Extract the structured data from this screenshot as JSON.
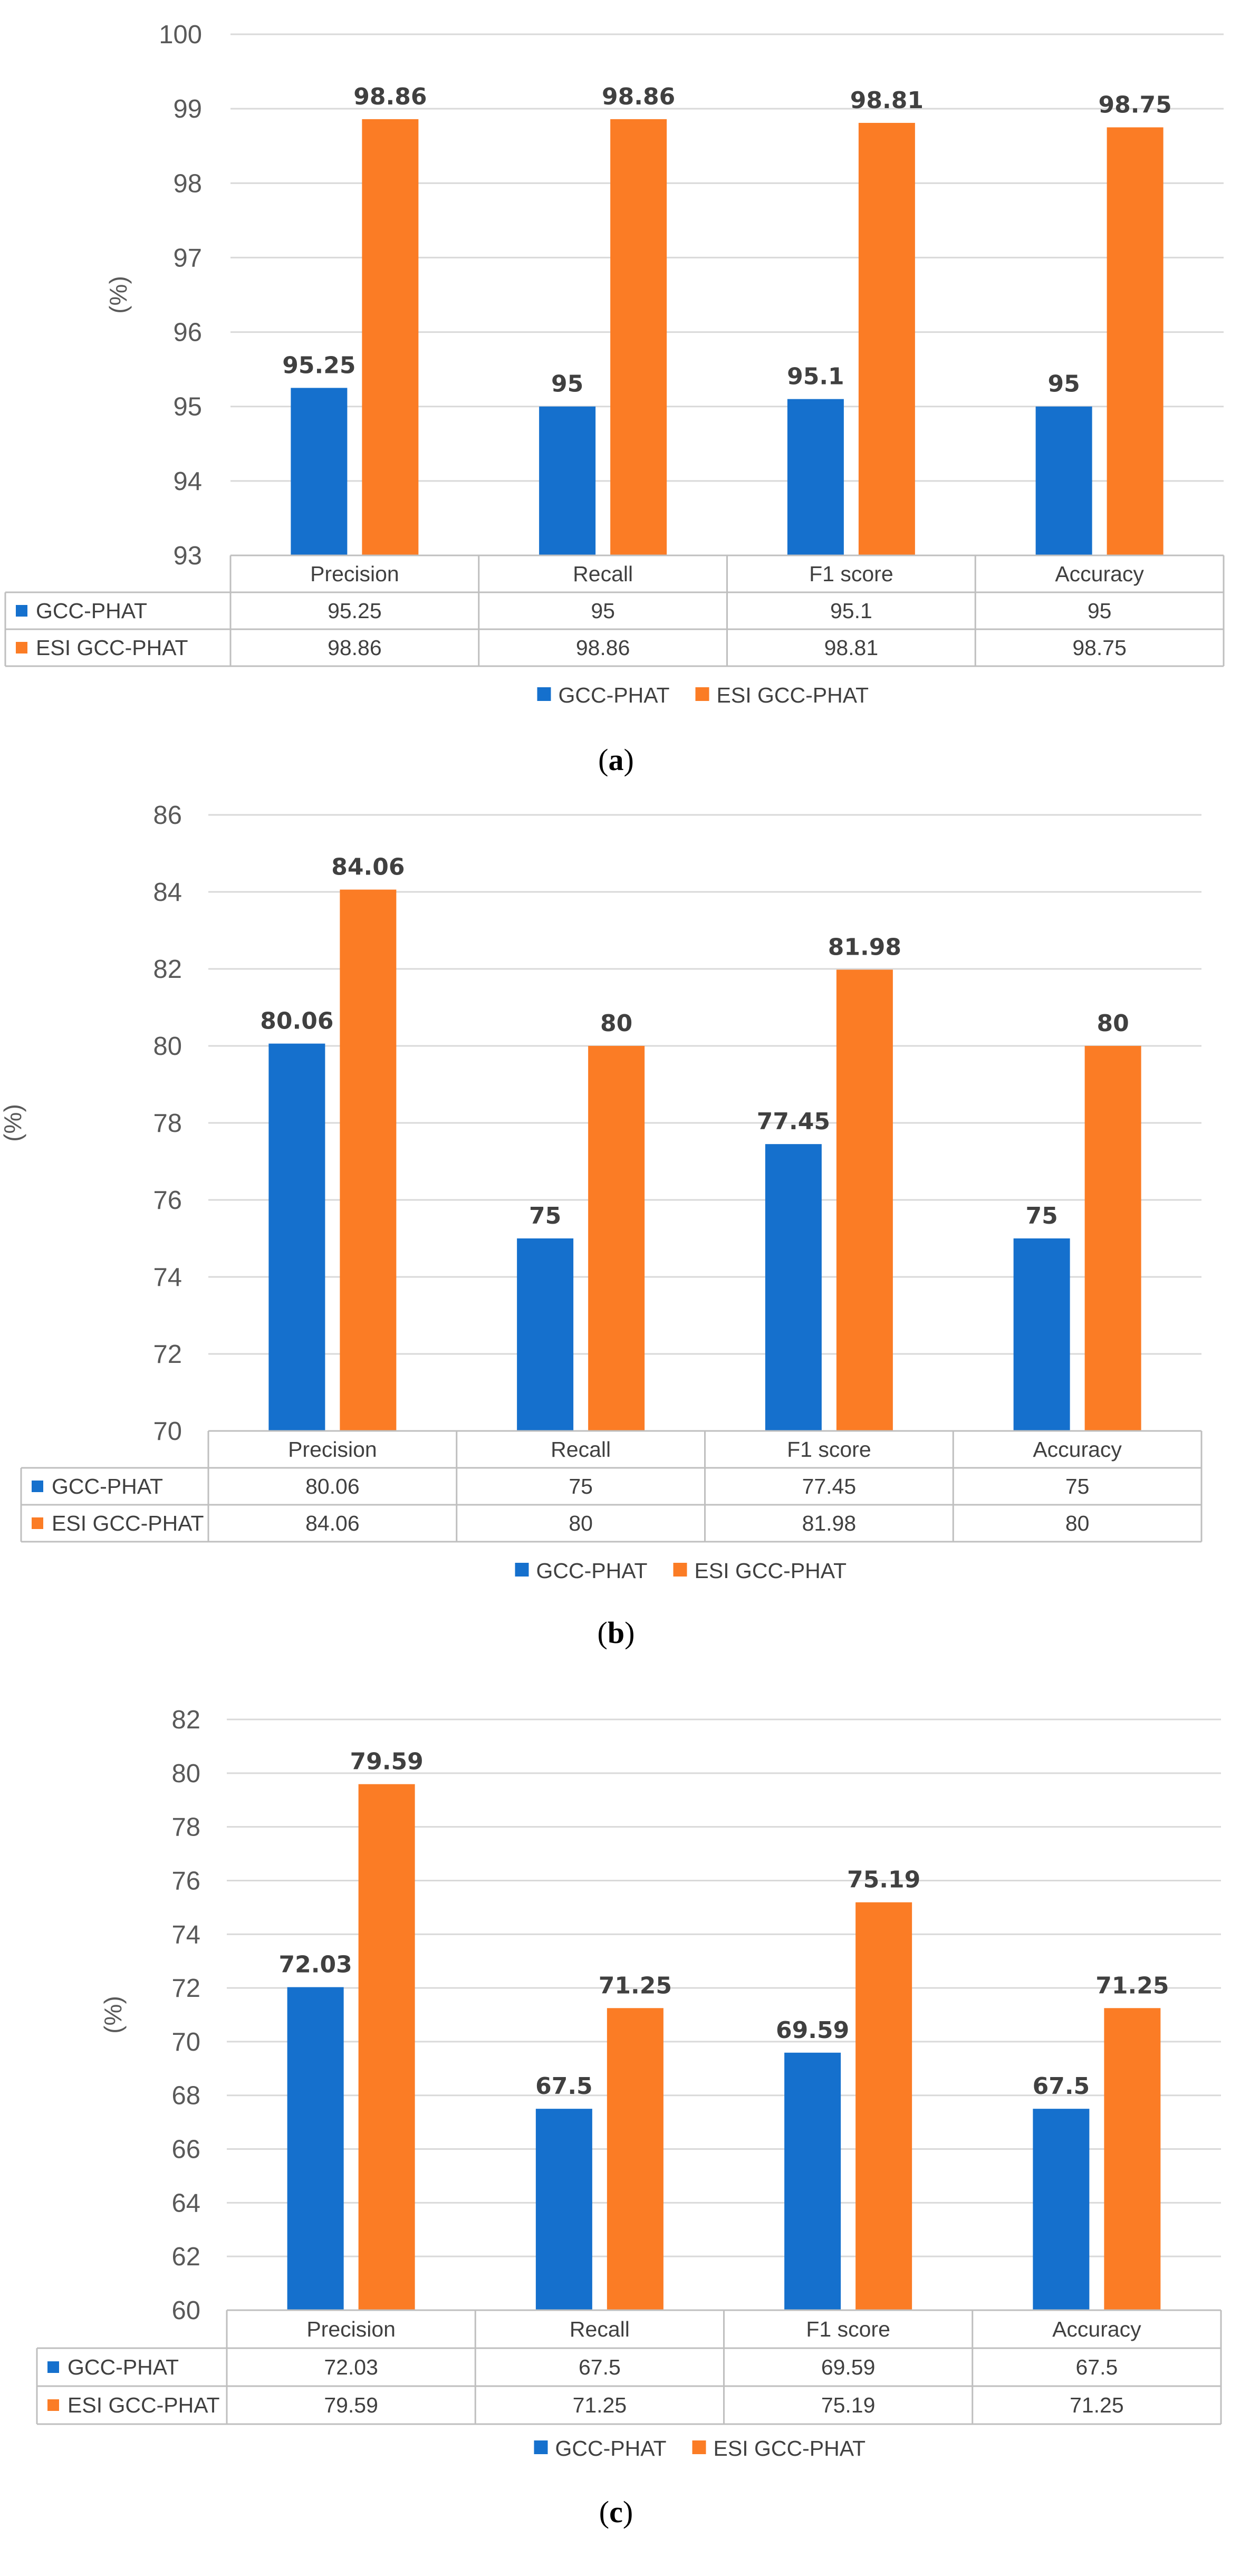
{
  "colors": {
    "gcc_phat": "#1570cd",
    "esi_gcc_phat": "#fb7c25",
    "grid": "#d9d9d9",
    "text": "#404040"
  },
  "chart_data": [
    {
      "type": "bar",
      "panel": "a",
      "caption_open": "(",
      "caption_letter": "a",
      "caption_close": ")",
      "ylabel": "(%)",
      "ylim": [
        93,
        100
      ],
      "ytick_step": 1,
      "yticks": [
        "93",
        "94",
        "95",
        "96",
        "97",
        "98",
        "99",
        "100"
      ],
      "grid": true,
      "legend_position": "bottom-center",
      "categories": [
        "Precision",
        "Recall",
        "F1 score",
        "Accuracy"
      ],
      "series": [
        {
          "name": "GCC-PHAT",
          "color": "#1570cd",
          "values": [
            95.25,
            95,
            95.1,
            95
          ],
          "labels": [
            "95.25",
            "95",
            "95.1",
            "95"
          ]
        },
        {
          "name": "ESI GCC-PHAT",
          "color": "#fb7c25",
          "values": [
            98.86,
            98.86,
            98.81,
            98.75
          ],
          "labels": [
            "98.86",
            "98.86",
            "98.81",
            "98.75"
          ]
        }
      ]
    },
    {
      "type": "bar",
      "panel": "b",
      "caption_open": "(",
      "caption_letter": "b",
      "caption_close": ")",
      "ylabel": "(%)",
      "ylim": [
        70,
        86
      ],
      "ytick_step": 2,
      "yticks": [
        "70",
        "72",
        "74",
        "76",
        "78",
        "80",
        "82",
        "84",
        "86"
      ],
      "grid": true,
      "legend_position": "bottom-center",
      "categories": [
        "Precision",
        "Recall",
        "F1 score",
        "Accuracy"
      ],
      "series": [
        {
          "name": "GCC-PHAT",
          "color": "#1570cd",
          "values": [
            80.06,
            75,
            77.45,
            75
          ],
          "labels": [
            "80.06",
            "75",
            "77.45",
            "75"
          ]
        },
        {
          "name": "ESI GCC-PHAT",
          "color": "#fb7c25",
          "values": [
            84.06,
            80,
            81.98,
            80
          ],
          "labels": [
            "84.06",
            "80",
            "81.98",
            "80"
          ]
        }
      ]
    },
    {
      "type": "bar",
      "panel": "c",
      "caption_open": "(",
      "caption_letter": "c",
      "caption_close": ")",
      "ylabel": "(%)",
      "ylim": [
        60,
        82
      ],
      "ytick_step": 2,
      "yticks": [
        "60",
        "62",
        "64",
        "66",
        "68",
        "70",
        "72",
        "74",
        "76",
        "78",
        "80",
        "82"
      ],
      "grid": true,
      "legend_position": "bottom-center",
      "categories": [
        "Precision",
        "Recall",
        "F1 score",
        "Accuracy"
      ],
      "series": [
        {
          "name": "GCC-PHAT",
          "color": "#1570cd",
          "values": [
            72.03,
            67.5,
            69.59,
            67.5
          ],
          "labels": [
            "72.03",
            "67.5",
            "69.59",
            "67.5"
          ]
        },
        {
          "name": "ESI GCC-PHAT",
          "color": "#fb7c25",
          "values": [
            79.59,
            71.25,
            75.19,
            71.25
          ],
          "labels": [
            "79.59",
            "71.25",
            "75.19",
            "71.25"
          ]
        }
      ]
    }
  ]
}
